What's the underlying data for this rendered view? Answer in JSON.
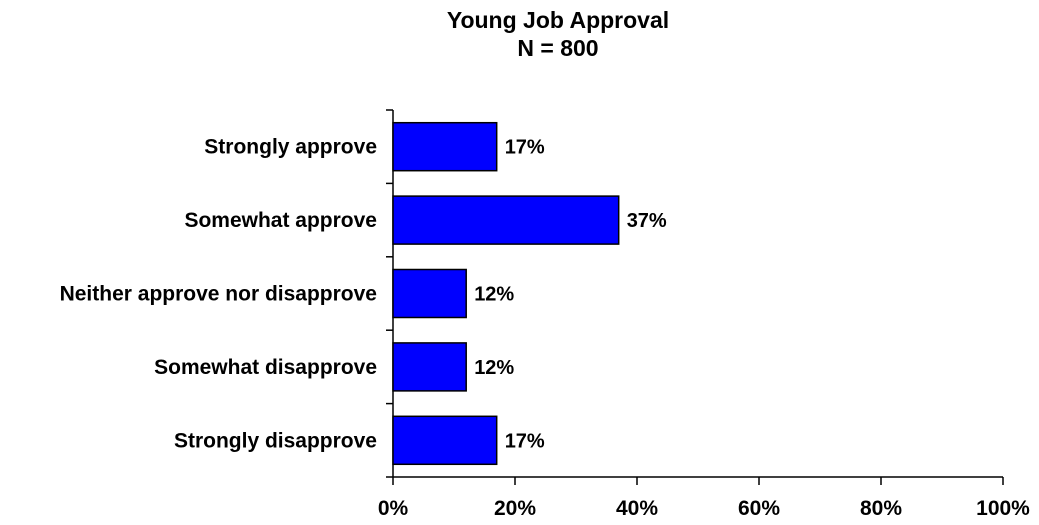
{
  "chart_data": {
    "type": "bar",
    "orientation": "horizontal",
    "title": "Young Job Approval",
    "subtitle": "N = 800",
    "categories": [
      "Strongly approve",
      "Somewhat approve",
      "Neither approve nor disapprove",
      "Somewhat disapprove",
      "Strongly disapprove"
    ],
    "values": [
      17,
      37,
      12,
      12,
      17
    ],
    "data_labels": [
      "17%",
      "37%",
      "12%",
      "12%",
      "17%"
    ],
    "xlim": [
      0,
      100
    ],
    "x_ticks": [
      0,
      20,
      40,
      60,
      80,
      100
    ],
    "x_tick_labels": [
      "0%",
      "20%",
      "40%",
      "60%",
      "80%",
      "100%"
    ],
    "xlabel": "",
    "ylabel": "",
    "bar_color": "#0000ff",
    "grid": false,
    "legend": "none"
  }
}
